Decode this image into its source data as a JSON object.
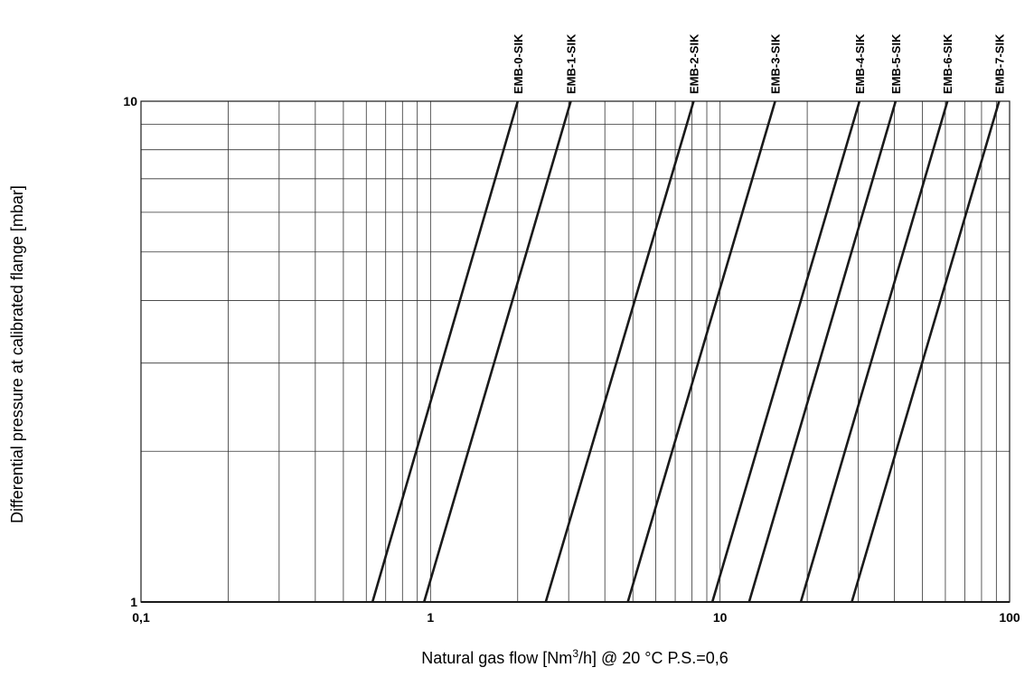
{
  "chart_data": {
    "type": "line",
    "title": "",
    "xlabel": "Natural gas flow [Nm³/h] @ 20 °C P.S.=0,6",
    "xlabel_parts": {
      "before": "Natural gas flow [Nm",
      "superscript": "3",
      "after": "/h] @ 20 °C P.S.=0,6"
    },
    "ylabel": "Differential pressure at calibrated flange [mbar]",
    "x_scale": "log",
    "y_scale": "log",
    "xlim": [
      0.1,
      100
    ],
    "ylim": [
      1,
      10
    ],
    "x_tick_labels": [
      "0,1",
      "1",
      "10",
      "100"
    ],
    "x_ticks": [
      0.1,
      1,
      10,
      100
    ],
    "y_tick_labels": [
      "1",
      "10"
    ],
    "y_ticks": [
      1,
      10
    ],
    "grid": true,
    "y_gridlines": [
      1,
      2,
      3,
      4,
      5,
      6,
      7,
      8,
      9,
      10
    ],
    "series_label_placement": "top, rotated vertical above each line",
    "line_color": "#1a1a1a",
    "grid_color": "#333333",
    "series": [
      {
        "name": "EMB-0-SIK",
        "x": [
          0.63,
          2.0
        ],
        "y": [
          1,
          10
        ]
      },
      {
        "name": "EMB-1-SIK",
        "x": [
          0.95,
          3.05
        ],
        "y": [
          1,
          10
        ]
      },
      {
        "name": "EMB-2-SIK",
        "x": [
          2.5,
          8.1
        ],
        "y": [
          1,
          10
        ]
      },
      {
        "name": "EMB-3-SIK",
        "x": [
          4.8,
          15.5
        ],
        "y": [
          1,
          10
        ]
      },
      {
        "name": "EMB-4-SIK",
        "x": [
          9.4,
          30.3
        ],
        "y": [
          1,
          10
        ]
      },
      {
        "name": "EMB-5-SIK",
        "x": [
          12.6,
          40.4
        ],
        "y": [
          1,
          10
        ]
      },
      {
        "name": "EMB-6-SIK",
        "x": [
          19.0,
          61.0
        ],
        "y": [
          1,
          10
        ]
      },
      {
        "name": "EMB-7-SIK",
        "x": [
          28.5,
          92.0
        ],
        "y": [
          1,
          10
        ]
      }
    ]
  }
}
